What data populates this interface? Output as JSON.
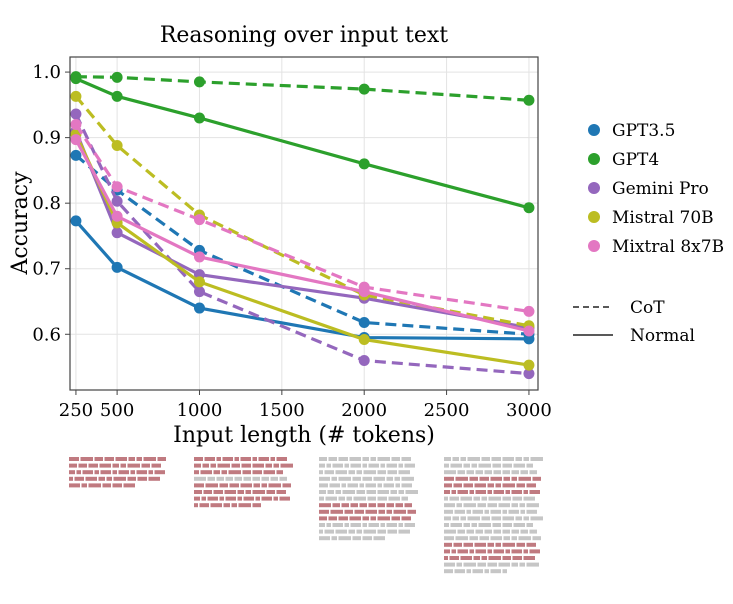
{
  "chart_data": {
    "type": "line",
    "title": "Reasoning over input text",
    "xlabel": "Input length (# tokens)",
    "ylabel": "Accuracy",
    "x": [
      250,
      500,
      1000,
      2000,
      3000
    ],
    "xticks": [
      250,
      500,
      1000,
      1500,
      2000,
      2500,
      3000
    ],
    "yticks": [
      0.6,
      0.7,
      0.8,
      0.9,
      1.0
    ],
    "xlim": [
      214,
      3055
    ],
    "ylim": [
      0.515,
      1.023
    ],
    "grid": true,
    "legend_placement": "right",
    "series": [
      {
        "name": "GPT3.5",
        "color": "#1f77b4",
        "normal": [
          0.773,
          0.702,
          0.64,
          0.595,
          0.593
        ],
        "cot": [
          0.873,
          0.82,
          0.728,
          0.618,
          0.6
        ]
      },
      {
        "name": "GPT4",
        "color": "#2ca02c",
        "normal": [
          0.99,
          0.963,
          0.93,
          0.86,
          0.793
        ],
        "cot": [
          0.993,
          0.992,
          0.985,
          0.974,
          0.957
        ]
      },
      {
        "name": "Gemini Pro",
        "color": "#9467bd",
        "normal": [
          0.91,
          0.755,
          0.691,
          0.655,
          0.61
        ],
        "cot": [
          0.936,
          0.803,
          0.665,
          0.56,
          0.54
        ]
      },
      {
        "name": "Mistral 70B",
        "color": "#bcbd22",
        "normal": [
          0.905,
          0.77,
          0.68,
          0.592,
          0.553
        ],
        "cot": [
          0.963,
          0.888,
          0.782,
          0.66,
          0.613
        ]
      },
      {
        "name": "Mixtral 8x7B",
        "color": "#e377c2",
        "normal": [
          0.897,
          0.78,
          0.718,
          0.665,
          0.605
        ],
        "cot": [
          0.92,
          0.825,
          0.775,
          0.672,
          0.635
        ]
      }
    ],
    "style_legend": {
      "cot": "CoT",
      "normal": "Normal"
    }
  }
}
